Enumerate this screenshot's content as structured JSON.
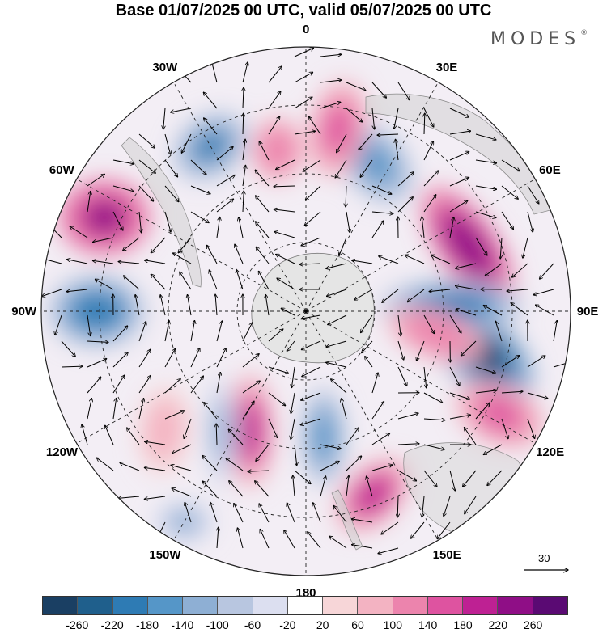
{
  "title": "Base 01/07/2025 00 UTC, valid 05/07/2025 00 UTC",
  "brand": "MODES",
  "brand_mark": "®",
  "longitude_labels": [
    {
      "text": "0",
      "lon": 0
    },
    {
      "text": "30E",
      "lon": 30
    },
    {
      "text": "60E",
      "lon": 60
    },
    {
      "text": "90E",
      "lon": 90
    },
    {
      "text": "120E",
      "lon": 120
    },
    {
      "text": "150E",
      "lon": 150
    },
    {
      "text": "180",
      "lon": 180
    },
    {
      "text": "150W",
      "lon": -150
    },
    {
      "text": "120W",
      "lon": -120
    },
    {
      "text": "90W",
      "lon": -90
    },
    {
      "text": "60W",
      "lon": -60
    },
    {
      "text": "30W",
      "lon": -30
    }
  ],
  "reference_vector": {
    "label": "30",
    "value": 30
  },
  "colorbar": {
    "ticks": [
      "-260",
      "-220",
      "-180",
      "-140",
      "-100",
      "-60",
      "-20",
      "20",
      "60",
      "100",
      "140",
      "180",
      "220",
      "260"
    ],
    "colors": [
      "#1a3f63",
      "#1f5f8c",
      "#2e7bb4",
      "#5596c8",
      "#8eafd4",
      "#b8c6e0",
      "#dcdff0",
      "#ffffff",
      "#f7d6d8",
      "#f3b3c2",
      "#ec84ad",
      "#de53a0",
      "#be2193",
      "#8f0e86",
      "#5a0a73"
    ]
  },
  "anomaly_centers": [
    {
      "lon": 103,
      "value": -260
    },
    {
      "lon": 68,
      "value": 250
    },
    {
      "lon": 88,
      "value": -200
    },
    {
      "lon": -90,
      "value": -200
    },
    {
      "lon": -65,
      "value": 230
    },
    {
      "lon": -30,
      "value": -180
    },
    {
      "lon": 25,
      "value": -160
    },
    {
      "lon": 160,
      "value": 210
    },
    {
      "lon": -155,
      "value": 210
    },
    {
      "lon": 100,
      "value": 140
    },
    {
      "lon": 118,
      "value": 150
    },
    {
      "lon": 10,
      "value": 150
    },
    {
      "lon": -10,
      "value": 140
    },
    {
      "lon": 172,
      "value": -170
    },
    {
      "lon": -130,
      "value": 100
    },
    {
      "lon": -145,
      "value": -110
    },
    {
      "lon": -150,
      "value": -120
    }
  ],
  "grid": {
    "parallels_dashed": true,
    "meridians_dashed": true,
    "projection": "south-polar-stereographic"
  }
}
